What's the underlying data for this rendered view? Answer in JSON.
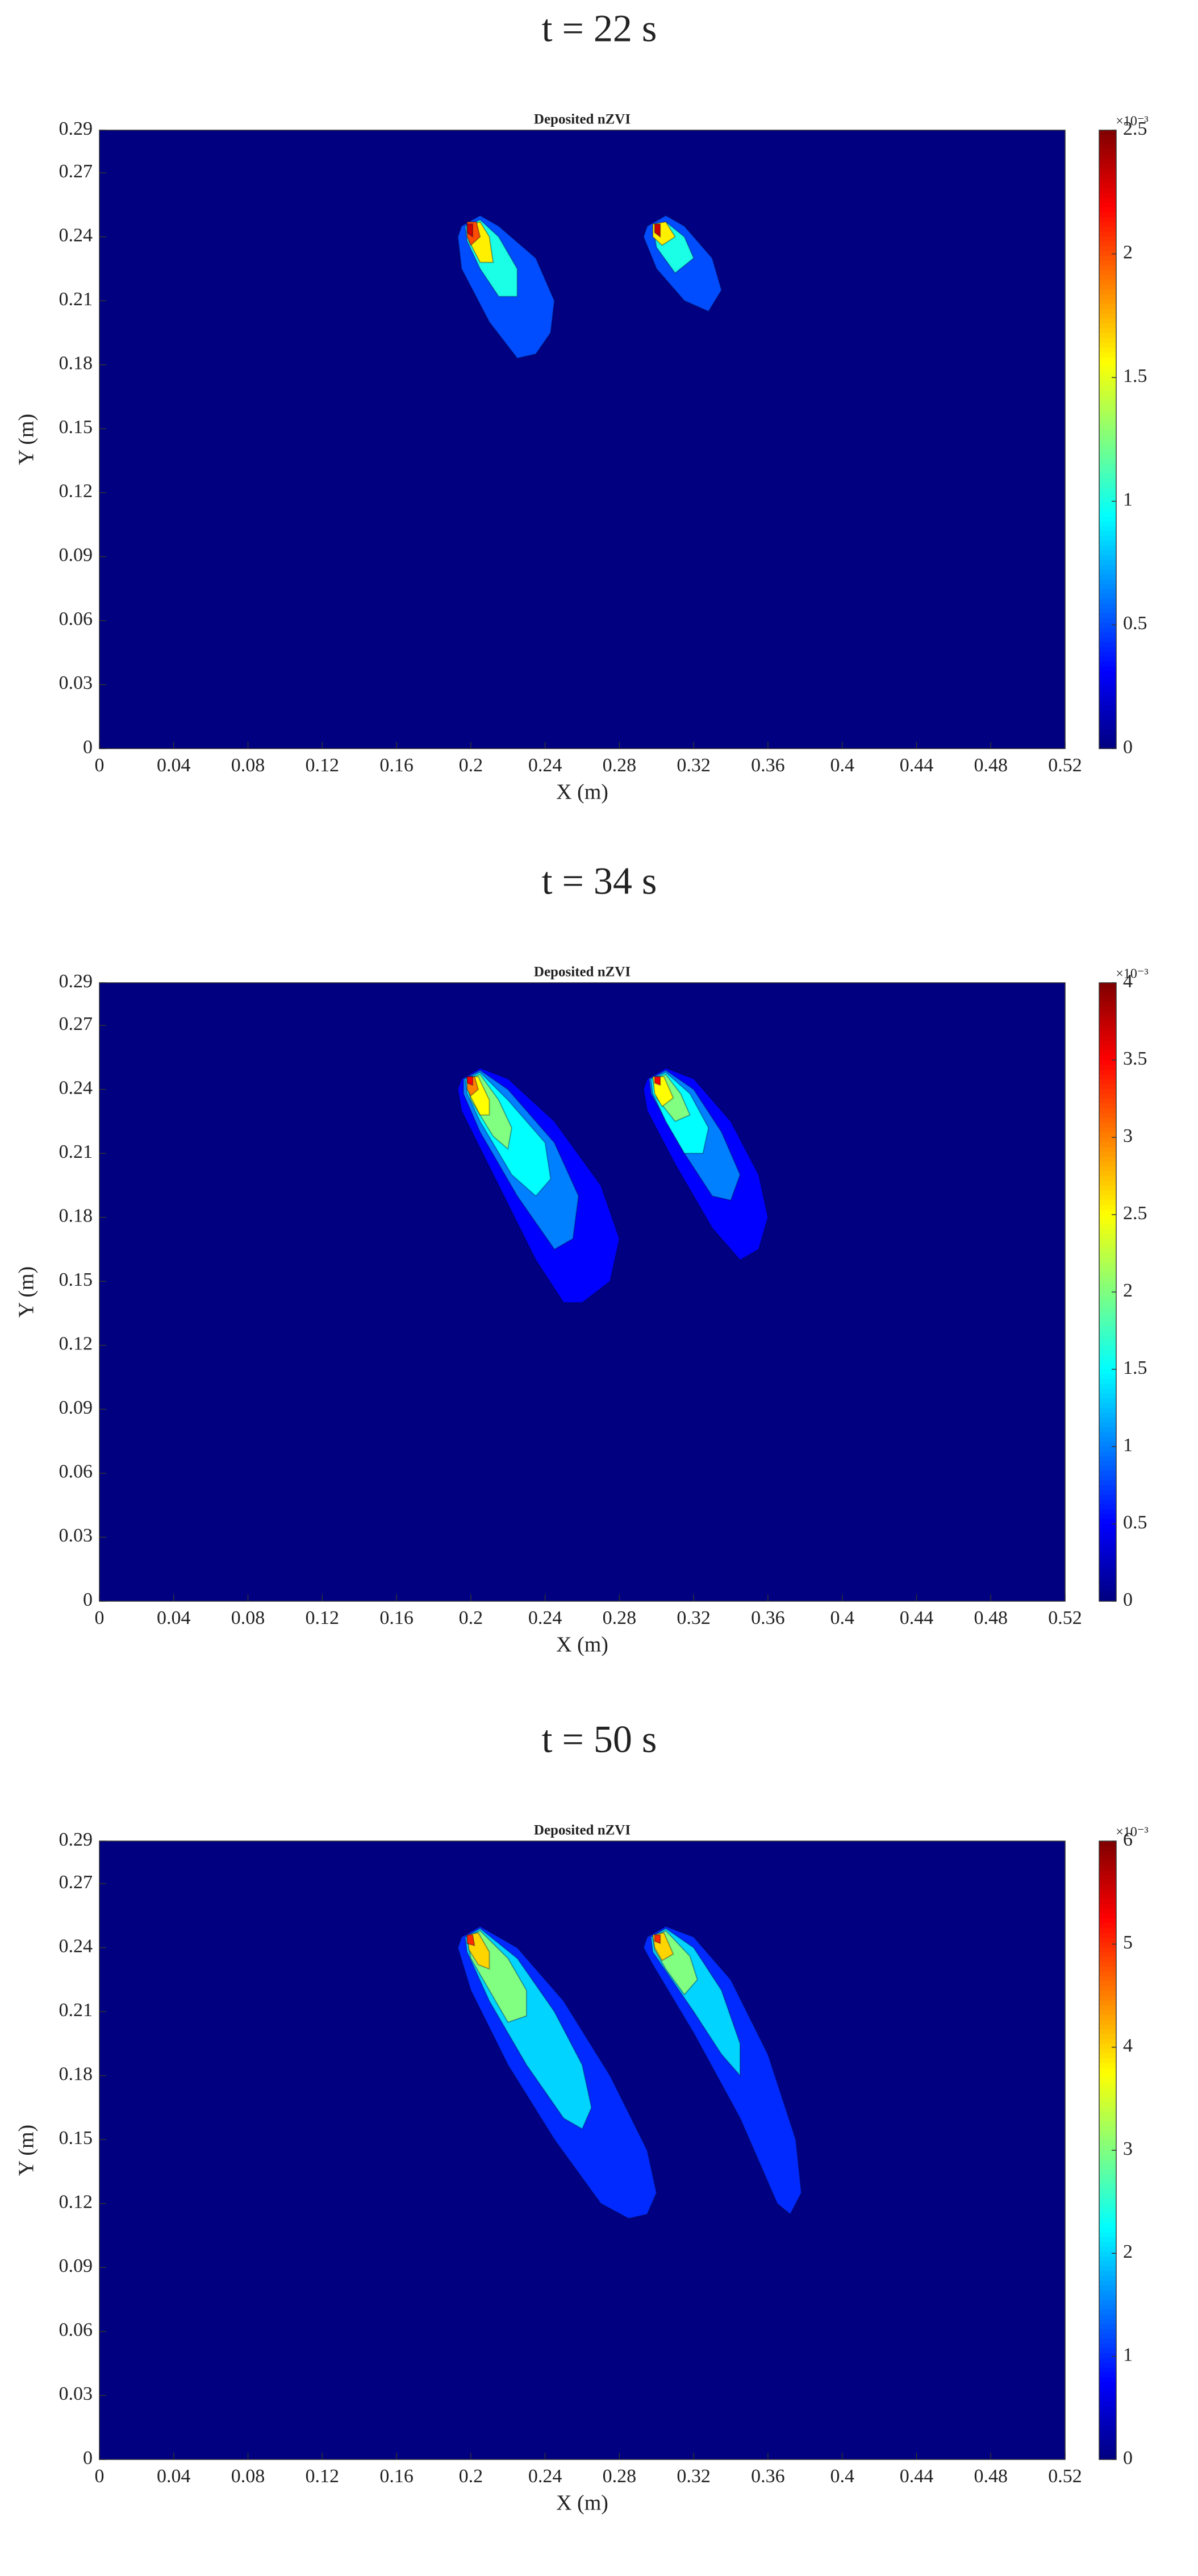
{
  "chart_data": [
    {
      "type": "contour",
      "panel_label": "t = 22 s",
      "title": "Deposited nZVI",
      "x_label": "X (m)",
      "y_label": "Y (m)",
      "xlim": [
        0,
        0.52
      ],
      "ylim": [
        0,
        0.29
      ],
      "xticks": [
        0,
        0.04,
        0.08,
        0.12,
        0.16,
        0.2,
        0.24,
        0.28,
        0.32,
        0.36,
        0.4,
        0.44,
        0.48,
        0.52
      ],
      "yticks": [
        0,
        0.03,
        0.06,
        0.09,
        0.12,
        0.15,
        0.18,
        0.21,
        0.24,
        0.27,
        0.29
      ],
      "colormap": "jet",
      "clim": [
        0,
        2.5
      ],
      "colorbar_ticks": [
        0,
        0.5,
        1,
        1.5,
        2,
        2.5
      ],
      "colorbar_multiplier": "×10⁻³",
      "contours": [
        {
          "level": 0.5,
          "x": [
            0.195,
            0.205,
            0.215,
            0.235,
            0.245,
            0.243,
            0.235,
            0.225,
            0.21,
            0.195,
            0.193
          ],
          "y": [
            0.245,
            0.25,
            0.245,
            0.23,
            0.21,
            0.195,
            0.185,
            0.183,
            0.2,
            0.225,
            0.24
          ]
        },
        {
          "level": 1.0,
          "x": [
            0.197,
            0.205,
            0.215,
            0.225,
            0.225,
            0.215,
            0.205,
            0.198
          ],
          "y": [
            0.245,
            0.248,
            0.24,
            0.225,
            0.212,
            0.212,
            0.225,
            0.238
          ]
        },
        {
          "level": 1.6,
          "x": [
            0.198,
            0.205,
            0.21,
            0.212,
            0.205,
            0.199
          ],
          "y": [
            0.245,
            0.247,
            0.24,
            0.228,
            0.228,
            0.238
          ]
        },
        {
          "level": 2.0,
          "x": [
            0.198,
            0.203,
            0.205,
            0.2,
            0.198
          ],
          "y": [
            0.247,
            0.247,
            0.24,
            0.236,
            0.24
          ]
        },
        {
          "level": 2.3,
          "x": [
            0.198,
            0.201,
            0.201,
            0.198
          ],
          "y": [
            0.246,
            0.246,
            0.24,
            0.242
          ]
        },
        {
          "level": 0.5,
          "x": [
            0.295,
            0.305,
            0.315,
            0.33,
            0.335,
            0.328,
            0.315,
            0.3,
            0.293
          ],
          "y": [
            0.245,
            0.25,
            0.245,
            0.23,
            0.215,
            0.205,
            0.21,
            0.225,
            0.24
          ]
        },
        {
          "level": 1.0,
          "x": [
            0.298,
            0.305,
            0.315,
            0.32,
            0.31,
            0.3
          ],
          "y": [
            0.245,
            0.247,
            0.24,
            0.23,
            0.223,
            0.235
          ]
        },
        {
          "level": 1.6,
          "x": [
            0.298,
            0.305,
            0.31,
            0.303,
            0.298
          ],
          "y": [
            0.246,
            0.247,
            0.24,
            0.236,
            0.24
          ]
        },
        {
          "level": 2.3,
          "x": [
            0.299,
            0.302,
            0.302,
            0.299
          ],
          "y": [
            0.246,
            0.246,
            0.24,
            0.242
          ]
        }
      ]
    },
    {
      "type": "contour",
      "panel_label": "t = 34 s",
      "title": "Deposited nZVI",
      "x_label": "X (m)",
      "y_label": "Y (m)",
      "xlim": [
        0,
        0.52
      ],
      "ylim": [
        0,
        0.29
      ],
      "xticks": [
        0,
        0.04,
        0.08,
        0.12,
        0.16,
        0.2,
        0.24,
        0.28,
        0.32,
        0.36,
        0.4,
        0.44,
        0.48,
        0.52
      ],
      "yticks": [
        0,
        0.03,
        0.06,
        0.09,
        0.12,
        0.15,
        0.18,
        0.21,
        0.24,
        0.27,
        0.29
      ],
      "colormap": "jet",
      "clim": [
        0,
        4
      ],
      "colorbar_ticks": [
        0,
        0.5,
        1,
        1.5,
        2,
        2.5,
        3,
        3.5,
        4
      ],
      "colorbar_multiplier": "×10⁻³",
      "contours": [
        {
          "level": 0.5,
          "x": [
            0.195,
            0.205,
            0.22,
            0.245,
            0.27,
            0.28,
            0.275,
            0.26,
            0.25,
            0.235,
            0.215,
            0.195,
            0.193
          ],
          "y": [
            0.245,
            0.25,
            0.245,
            0.225,
            0.195,
            0.17,
            0.15,
            0.14,
            0.14,
            0.16,
            0.195,
            0.23,
            0.24
          ]
        },
        {
          "level": 1.0,
          "x": [
            0.196,
            0.205,
            0.22,
            0.245,
            0.258,
            0.255,
            0.245,
            0.225,
            0.205,
            0.196
          ],
          "y": [
            0.245,
            0.249,
            0.24,
            0.215,
            0.19,
            0.17,
            0.165,
            0.19,
            0.22,
            0.238
          ]
        },
        {
          "level": 1.5,
          "x": [
            0.197,
            0.205,
            0.22,
            0.24,
            0.243,
            0.235,
            0.222,
            0.205,
            0.198
          ],
          "y": [
            0.245,
            0.248,
            0.235,
            0.215,
            0.198,
            0.19,
            0.2,
            0.225,
            0.238
          ]
        },
        {
          "level": 2.0,
          "x": [
            0.198,
            0.205,
            0.215,
            0.222,
            0.22,
            0.212,
            0.2
          ],
          "y": [
            0.245,
            0.247,
            0.235,
            0.222,
            0.212,
            0.218,
            0.235
          ]
        },
        {
          "level": 2.5,
          "x": [
            0.198,
            0.204,
            0.21,
            0.21,
            0.205,
            0.199
          ],
          "y": [
            0.246,
            0.246,
            0.235,
            0.228,
            0.228,
            0.238
          ]
        },
        {
          "level": 3.0,
          "x": [
            0.198,
            0.202,
            0.204,
            0.2,
            0.198
          ],
          "y": [
            0.246,
            0.246,
            0.24,
            0.237,
            0.24
          ]
        },
        {
          "level": 3.5,
          "x": [
            0.198,
            0.201,
            0.201,
            0.198
          ],
          "y": [
            0.246,
            0.246,
            0.242,
            0.243
          ]
        },
        {
          "level": 0.5,
          "x": [
            0.295,
            0.305,
            0.32,
            0.34,
            0.355,
            0.36,
            0.355,
            0.345,
            0.33,
            0.31,
            0.295,
            0.293
          ],
          "y": [
            0.245,
            0.25,
            0.245,
            0.225,
            0.2,
            0.18,
            0.165,
            0.16,
            0.175,
            0.205,
            0.23,
            0.24
          ]
        },
        {
          "level": 1.0,
          "x": [
            0.296,
            0.305,
            0.32,
            0.335,
            0.345,
            0.34,
            0.33,
            0.315,
            0.297
          ],
          "y": [
            0.245,
            0.249,
            0.24,
            0.22,
            0.2,
            0.188,
            0.19,
            0.21,
            0.238
          ]
        },
        {
          "level": 1.5,
          "x": [
            0.297,
            0.305,
            0.318,
            0.328,
            0.325,
            0.315,
            0.305,
            0.298
          ],
          "y": [
            0.245,
            0.248,
            0.238,
            0.222,
            0.21,
            0.21,
            0.225,
            0.238
          ]
        },
        {
          "level": 2.0,
          "x": [
            0.298,
            0.305,
            0.313,
            0.318,
            0.31,
            0.3
          ],
          "y": [
            0.245,
            0.247,
            0.238,
            0.228,
            0.225,
            0.236
          ]
        },
        {
          "level": 2.5,
          "x": [
            0.298,
            0.304,
            0.309,
            0.303,
            0.299
          ],
          "y": [
            0.246,
            0.246,
            0.236,
            0.232,
            0.238
          ]
        },
        {
          "level": 3.5,
          "x": [
            0.299,
            0.302,
            0.302,
            0.299
          ],
          "y": [
            0.246,
            0.246,
            0.242,
            0.243
          ]
        }
      ]
    },
    {
      "type": "contour",
      "panel_label": "t = 50 s",
      "title": "Deposited nZVI",
      "x_label": "X (m)",
      "y_label": "Y (m)",
      "xlim": [
        0,
        0.52
      ],
      "ylim": [
        0,
        0.29
      ],
      "xticks": [
        0,
        0.04,
        0.08,
        0.12,
        0.16,
        0.2,
        0.24,
        0.28,
        0.32,
        0.36,
        0.4,
        0.44,
        0.48,
        0.52
      ],
      "yticks": [
        0,
        0.03,
        0.06,
        0.09,
        0.12,
        0.15,
        0.18,
        0.21,
        0.24,
        0.27,
        0.29
      ],
      "colormap": "jet",
      "clim": [
        0,
        6
      ],
      "colorbar_ticks": [
        0,
        1,
        2,
        3,
        4,
        5,
        6
      ],
      "colorbar_multiplier": "×10⁻³",
      "contours": [
        {
          "level": 1,
          "x": [
            0.195,
            0.205,
            0.225,
            0.25,
            0.275,
            0.295,
            0.3,
            0.295,
            0.285,
            0.27,
            0.245,
            0.22,
            0.2,
            0.193
          ],
          "y": [
            0.245,
            0.25,
            0.24,
            0.215,
            0.18,
            0.145,
            0.125,
            0.115,
            0.113,
            0.12,
            0.15,
            0.185,
            0.22,
            0.24
          ]
        },
        {
          "level": 2,
          "x": [
            0.197,
            0.205,
            0.225,
            0.245,
            0.26,
            0.265,
            0.26,
            0.25,
            0.23,
            0.21,
            0.198
          ],
          "y": [
            0.245,
            0.249,
            0.235,
            0.21,
            0.185,
            0.165,
            0.155,
            0.16,
            0.185,
            0.215,
            0.238
          ]
        },
        {
          "level": 3,
          "x": [
            0.198,
            0.205,
            0.22,
            0.23,
            0.23,
            0.22,
            0.21,
            0.2
          ],
          "y": [
            0.245,
            0.248,
            0.235,
            0.22,
            0.208,
            0.205,
            0.22,
            0.235
          ]
        },
        {
          "level": 4,
          "x": [
            0.198,
            0.204,
            0.21,
            0.21,
            0.204,
            0.199
          ],
          "y": [
            0.246,
            0.247,
            0.238,
            0.23,
            0.232,
            0.239
          ]
        },
        {
          "level": 5,
          "x": [
            0.198,
            0.201,
            0.202,
            0.198
          ],
          "y": [
            0.246,
            0.246,
            0.241,
            0.242
          ]
        },
        {
          "level": 1,
          "x": [
            0.295,
            0.305,
            0.32,
            0.34,
            0.36,
            0.375,
            0.378,
            0.372,
            0.365,
            0.345,
            0.32,
            0.298,
            0.293
          ],
          "y": [
            0.245,
            0.25,
            0.245,
            0.225,
            0.19,
            0.15,
            0.125,
            0.115,
            0.12,
            0.16,
            0.2,
            0.232,
            0.24
          ]
        },
        {
          "level": 2,
          "x": [
            0.297,
            0.305,
            0.32,
            0.335,
            0.345,
            0.345,
            0.335,
            0.32,
            0.298
          ],
          "y": [
            0.245,
            0.249,
            0.24,
            0.22,
            0.195,
            0.18,
            0.19,
            0.21,
            0.238
          ]
        },
        {
          "level": 3,
          "x": [
            0.298,
            0.305,
            0.318,
            0.322,
            0.315,
            0.305,
            0.299
          ],
          "y": [
            0.245,
            0.248,
            0.236,
            0.225,
            0.218,
            0.23,
            0.239
          ]
        },
        {
          "level": 4,
          "x": [
            0.298,
            0.304,
            0.309,
            0.303,
            0.299
          ],
          "y": [
            0.246,
            0.247,
            0.237,
            0.234,
            0.24
          ]
        },
        {
          "level": 5,
          "x": [
            0.299,
            0.302,
            0.302,
            0.299
          ],
          "y": [
            0.246,
            0.246,
            0.242,
            0.243
          ]
        }
      ]
    }
  ]
}
